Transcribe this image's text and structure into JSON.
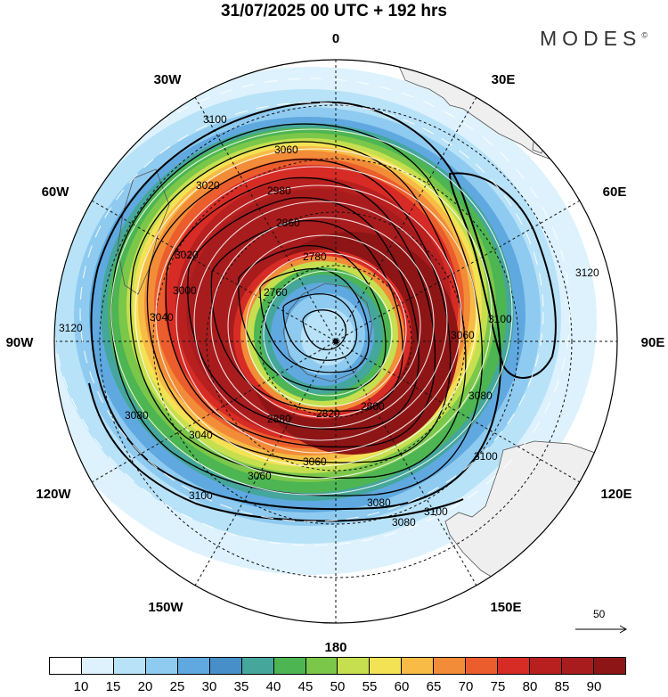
{
  "header": {
    "title": "31/07/2025  00 UTC  + 192 hrs",
    "brand": "MODES",
    "brand_mark": "©"
  },
  "map": {
    "projection": "south-polar-stereographic",
    "longitude_labels": [
      "0",
      "30E",
      "60E",
      "90E",
      "120E",
      "150E",
      "180",
      "150W",
      "120W",
      "90W",
      "60W",
      "30W"
    ],
    "contour_labels": [
      "3100",
      "3060",
      "3020",
      "2980",
      "2860",
      "2780",
      "2760",
      "3040",
      "3020",
      "3000",
      "3060",
      "3120",
      "3100",
      "3080",
      "3080",
      "3060",
      "3040",
      "2880",
      "2820",
      "2800",
      "3100",
      "3080",
      "3060",
      "3100",
      "3080",
      "3100",
      "3120"
    ],
    "reference_vector": "50"
  },
  "colorbar": {
    "colors": [
      "#ffffff",
      "#ddf2fd",
      "#b8e2f8",
      "#8fcbf0",
      "#5fa9e0",
      "#478fc8",
      "#45a69b",
      "#4db552",
      "#7bc74a",
      "#c5df4f",
      "#f4e255",
      "#f7bb46",
      "#f28c38",
      "#eb5d2d",
      "#d62c25",
      "#b8201f",
      "#a81c1d",
      "#8e1515"
    ],
    "labels": [
      "10",
      "15",
      "20",
      "25",
      "30",
      "35",
      "40",
      "45",
      "50",
      "55",
      "60",
      "65",
      "70",
      "75",
      "80",
      "85",
      "90"
    ]
  }
}
